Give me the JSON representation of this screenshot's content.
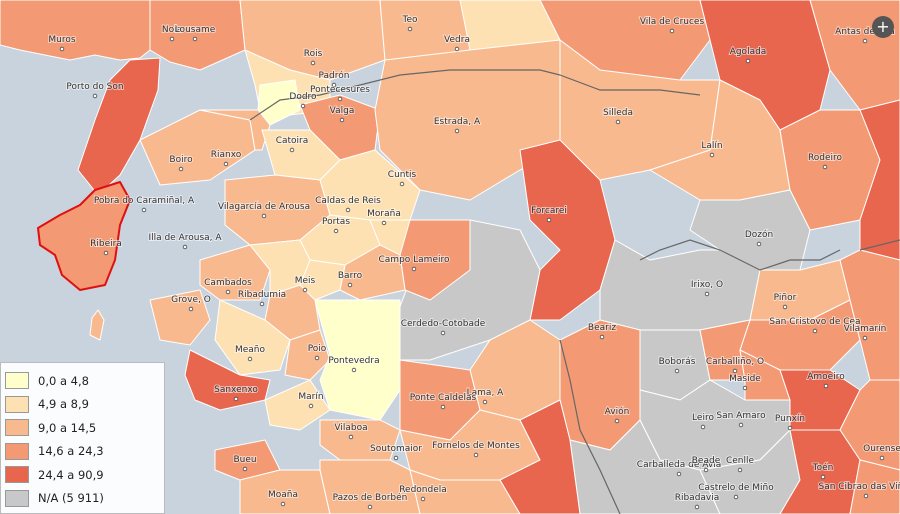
{
  "colors": {
    "water": "#c9d3de",
    "class_0": "#ffffcc",
    "class_1": "#fde1b3",
    "class_2": "#f9b98f",
    "class_3": "#f39a74",
    "class_4": "#e8654e",
    "na": "#c8c8c8",
    "selected_outline": "#e01010"
  },
  "legend": [
    {
      "label": "0,0 a 4,8",
      "color": "#ffffcc"
    },
    {
      "label": "4,9 a 8,9",
      "color": "#fde1b3"
    },
    {
      "label": "9,0 a 14,5",
      "color": "#f9b98f"
    },
    {
      "label": "14,6 a 24,3",
      "color": "#f39a74"
    },
    {
      "label": "24,4 a 90,9",
      "color": "#e8654e"
    },
    {
      "label": "N/A (5 911)",
      "color": "#c8c8c8"
    }
  ],
  "zoom_icon": "plus-icon",
  "places": [
    {
      "name": "Muros"
    },
    {
      "name": "Noia"
    },
    {
      "name": "Lousame"
    },
    {
      "name": "Teo"
    },
    {
      "name": "Vedra"
    },
    {
      "name": "Vila de Cruces"
    },
    {
      "name": "Agolada"
    },
    {
      "name": "Antas de Ulla"
    },
    {
      "name": "Rois"
    },
    {
      "name": "Padrón"
    },
    {
      "name": "Porto do Son"
    },
    {
      "name": "Dodro"
    },
    {
      "name": "Pontecesures"
    },
    {
      "name": "Valga"
    },
    {
      "name": "Estrada, A"
    },
    {
      "name": "Silleda"
    },
    {
      "name": "Lalín"
    },
    {
      "name": "Rodeiro"
    },
    {
      "name": "Boiro"
    },
    {
      "name": "Rianxo"
    },
    {
      "name": "Catoira"
    },
    {
      "name": "Cuntis"
    },
    {
      "name": "Pobra do Caramiñal, A"
    },
    {
      "name": "Vilagarcía de Arousa"
    },
    {
      "name": "Caldas de Reis"
    },
    {
      "name": "Moraña"
    },
    {
      "name": "Forcarei"
    },
    {
      "name": "Ribeira"
    },
    {
      "name": "Illa de Arousa, A"
    },
    {
      "name": "Portas"
    },
    {
      "name": "Dozón"
    },
    {
      "name": "Campo Lameiro"
    },
    {
      "name": "Barro"
    },
    {
      "name": "Irixo, O"
    },
    {
      "name": "Piñor"
    },
    {
      "name": "Cambados"
    },
    {
      "name": "Meis"
    },
    {
      "name": "Ribadumia"
    },
    {
      "name": "Grove, O"
    },
    {
      "name": "Cerdedo-Cotobade"
    },
    {
      "name": "Beariz"
    },
    {
      "name": "San Cristovo de Cea"
    },
    {
      "name": "Vilamarín"
    },
    {
      "name": "Meaño"
    },
    {
      "name": "Poio"
    },
    {
      "name": "Pontevedra"
    },
    {
      "name": "Boborás"
    },
    {
      "name": "Carballiño, O"
    },
    {
      "name": "Maside"
    },
    {
      "name": "Amoeiro"
    },
    {
      "name": "Sanxenxo"
    },
    {
      "name": "Lama, A"
    },
    {
      "name": "Marín"
    },
    {
      "name": "Ponte Caldelas"
    },
    {
      "name": "Avión"
    },
    {
      "name": "Leiro"
    },
    {
      "name": "San Amaro"
    },
    {
      "name": "Punxín"
    },
    {
      "name": "Ourense"
    },
    {
      "name": "Vilaboa"
    },
    {
      "name": "Fornelos de Montes"
    },
    {
      "name": "Soutomaior"
    },
    {
      "name": "Bueu"
    },
    {
      "name": "Carballeda de Avia"
    },
    {
      "name": "Beade"
    },
    {
      "name": "Cenlle"
    },
    {
      "name": "Toén"
    },
    {
      "name": "Moaña"
    },
    {
      "name": "Pazos de Borbén"
    },
    {
      "name": "Redondela"
    },
    {
      "name": "Castrelo de Miño"
    },
    {
      "name": "Ribadavia"
    },
    {
      "name": "San Cibrao das Viñas"
    }
  ]
}
